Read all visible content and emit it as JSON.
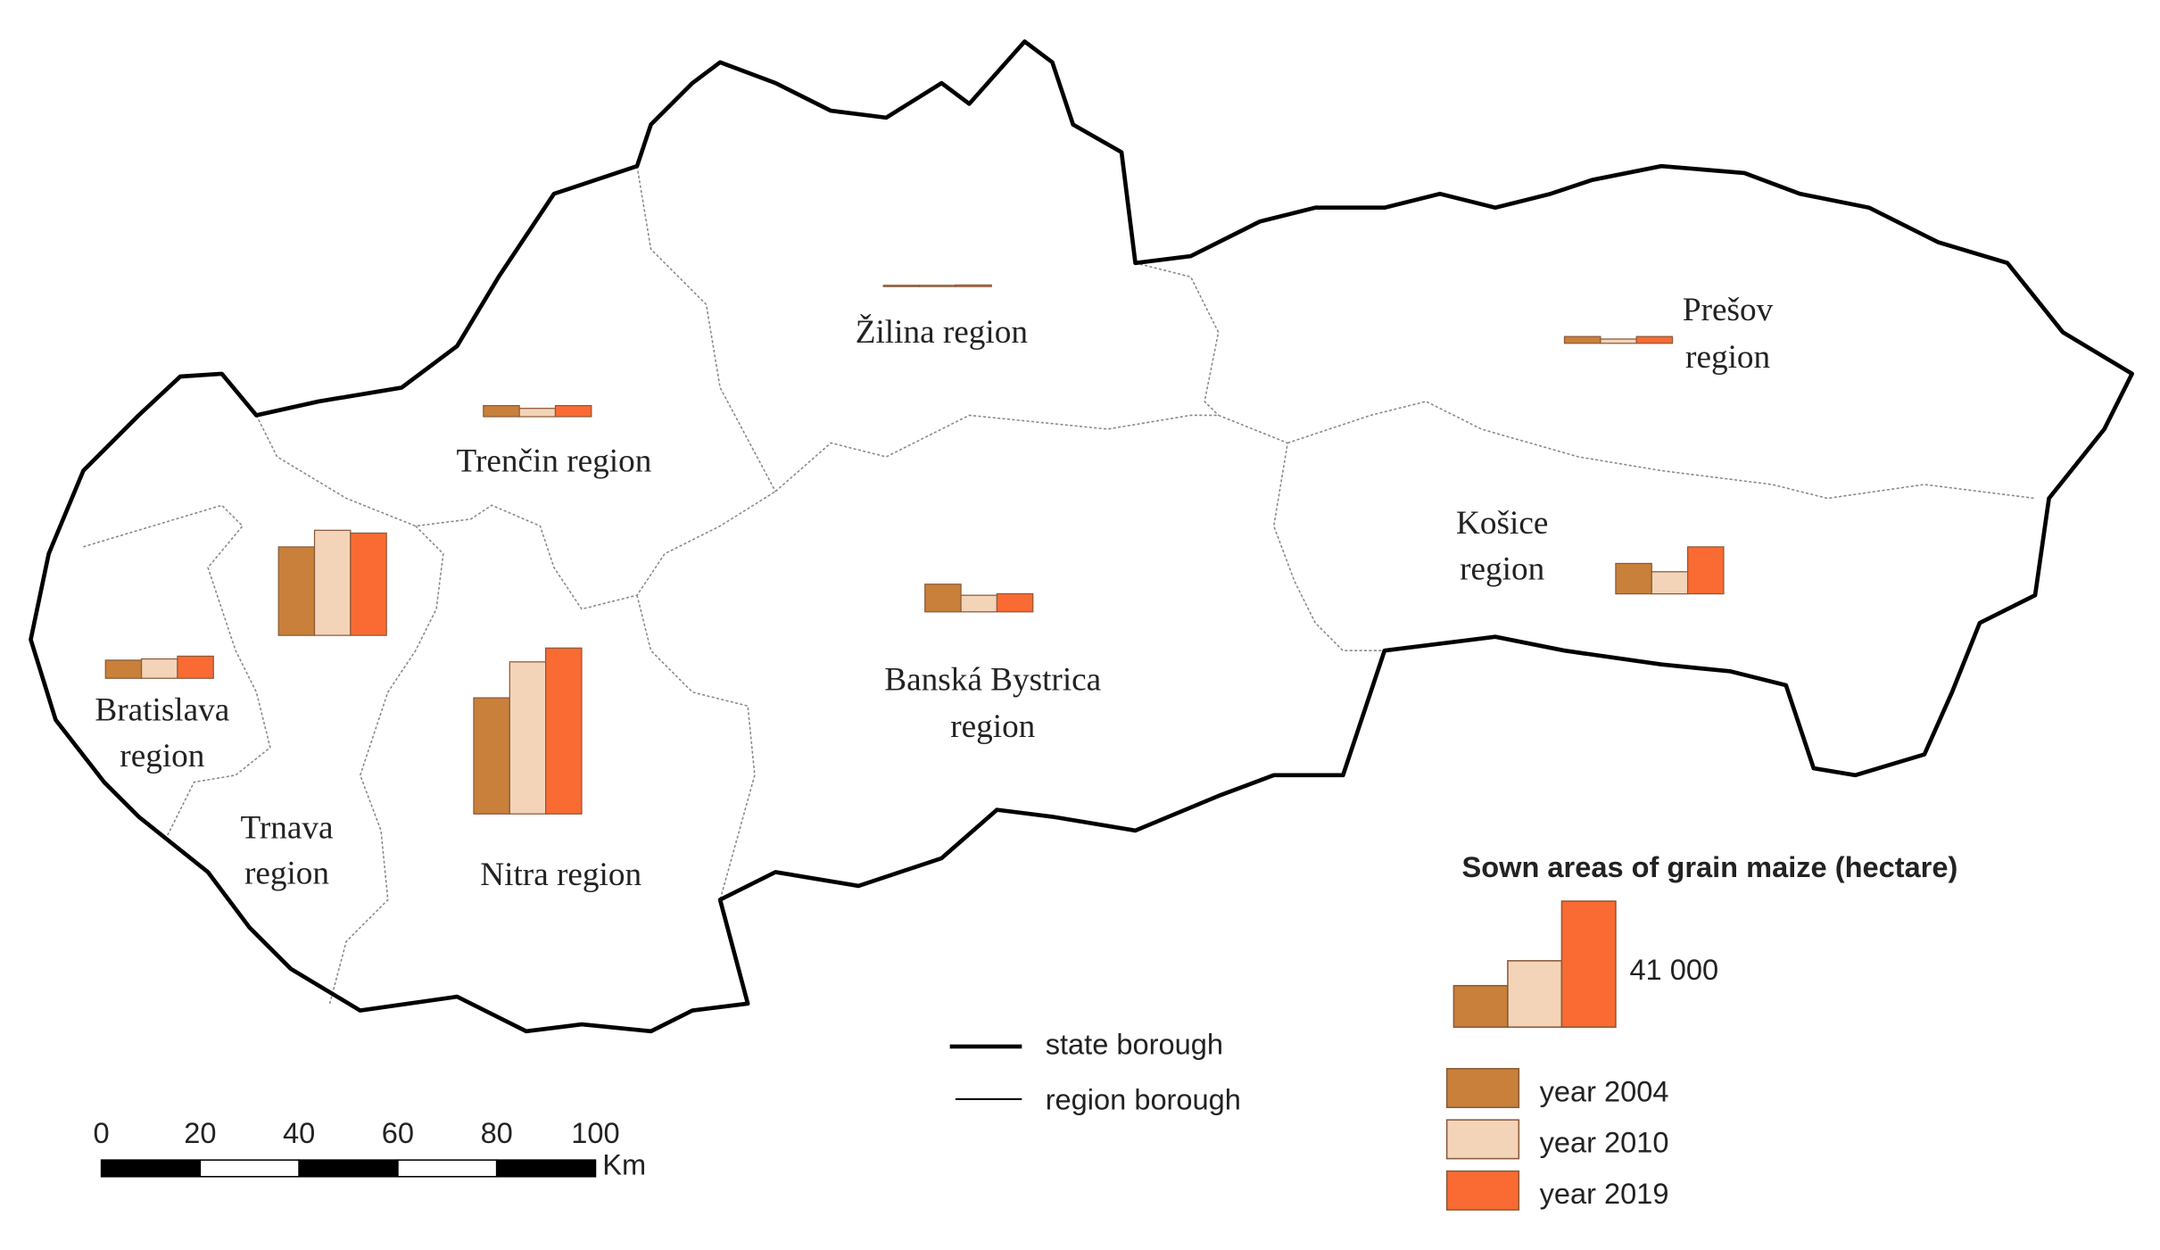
{
  "legend_title": "Sown areas of grain maize (hectare)",
  "series": [
    {
      "name": "year 2004",
      "color": "#c8803a"
    },
    {
      "name": "year 2010",
      "color": "#f4d4b8"
    },
    {
      "name": "year 2019",
      "color": "#f96b32"
    }
  ],
  "regions": [
    {
      "label": [
        "Žilina region"
      ],
      "values": [
        400,
        400,
        500
      ]
    },
    {
      "label": [
        "Prešov",
        "region"
      ],
      "values": [
        2200,
        1400,
        2200
      ]
    },
    {
      "label": [
        "Trenčin region"
      ],
      "values": [
        3600,
        2700,
        3600
      ]
    },
    {
      "label": [
        "Košice",
        "region"
      ],
      "values": [
        9900,
        7200,
        15300
      ]
    },
    {
      "label": [
        "Banská Bystrica",
        "region"
      ],
      "values": [
        9000,
        5400,
        5900
      ]
    },
    {
      "label": [
        "Bratislava",
        "region"
      ],
      "values": [
        5900,
        6300,
        7200
      ]
    },
    {
      "label": [
        "Trnava",
        "region"
      ],
      "values": [
        28800,
        34200,
        33300
      ]
    },
    {
      "label": [
        "Nitra region"
      ],
      "values": [
        37800,
        49500,
        54000
      ]
    }
  ],
  "size_legend": {
    "values": [
      13500,
      21600,
      41000
    ],
    "value_label": "41 000"
  },
  "border_legend": [
    "state borough",
    "region borough"
  ],
  "scale_bar": {
    "ticks": [
      0,
      20,
      40,
      60,
      80,
      100
    ],
    "unit": "Km"
  }
}
